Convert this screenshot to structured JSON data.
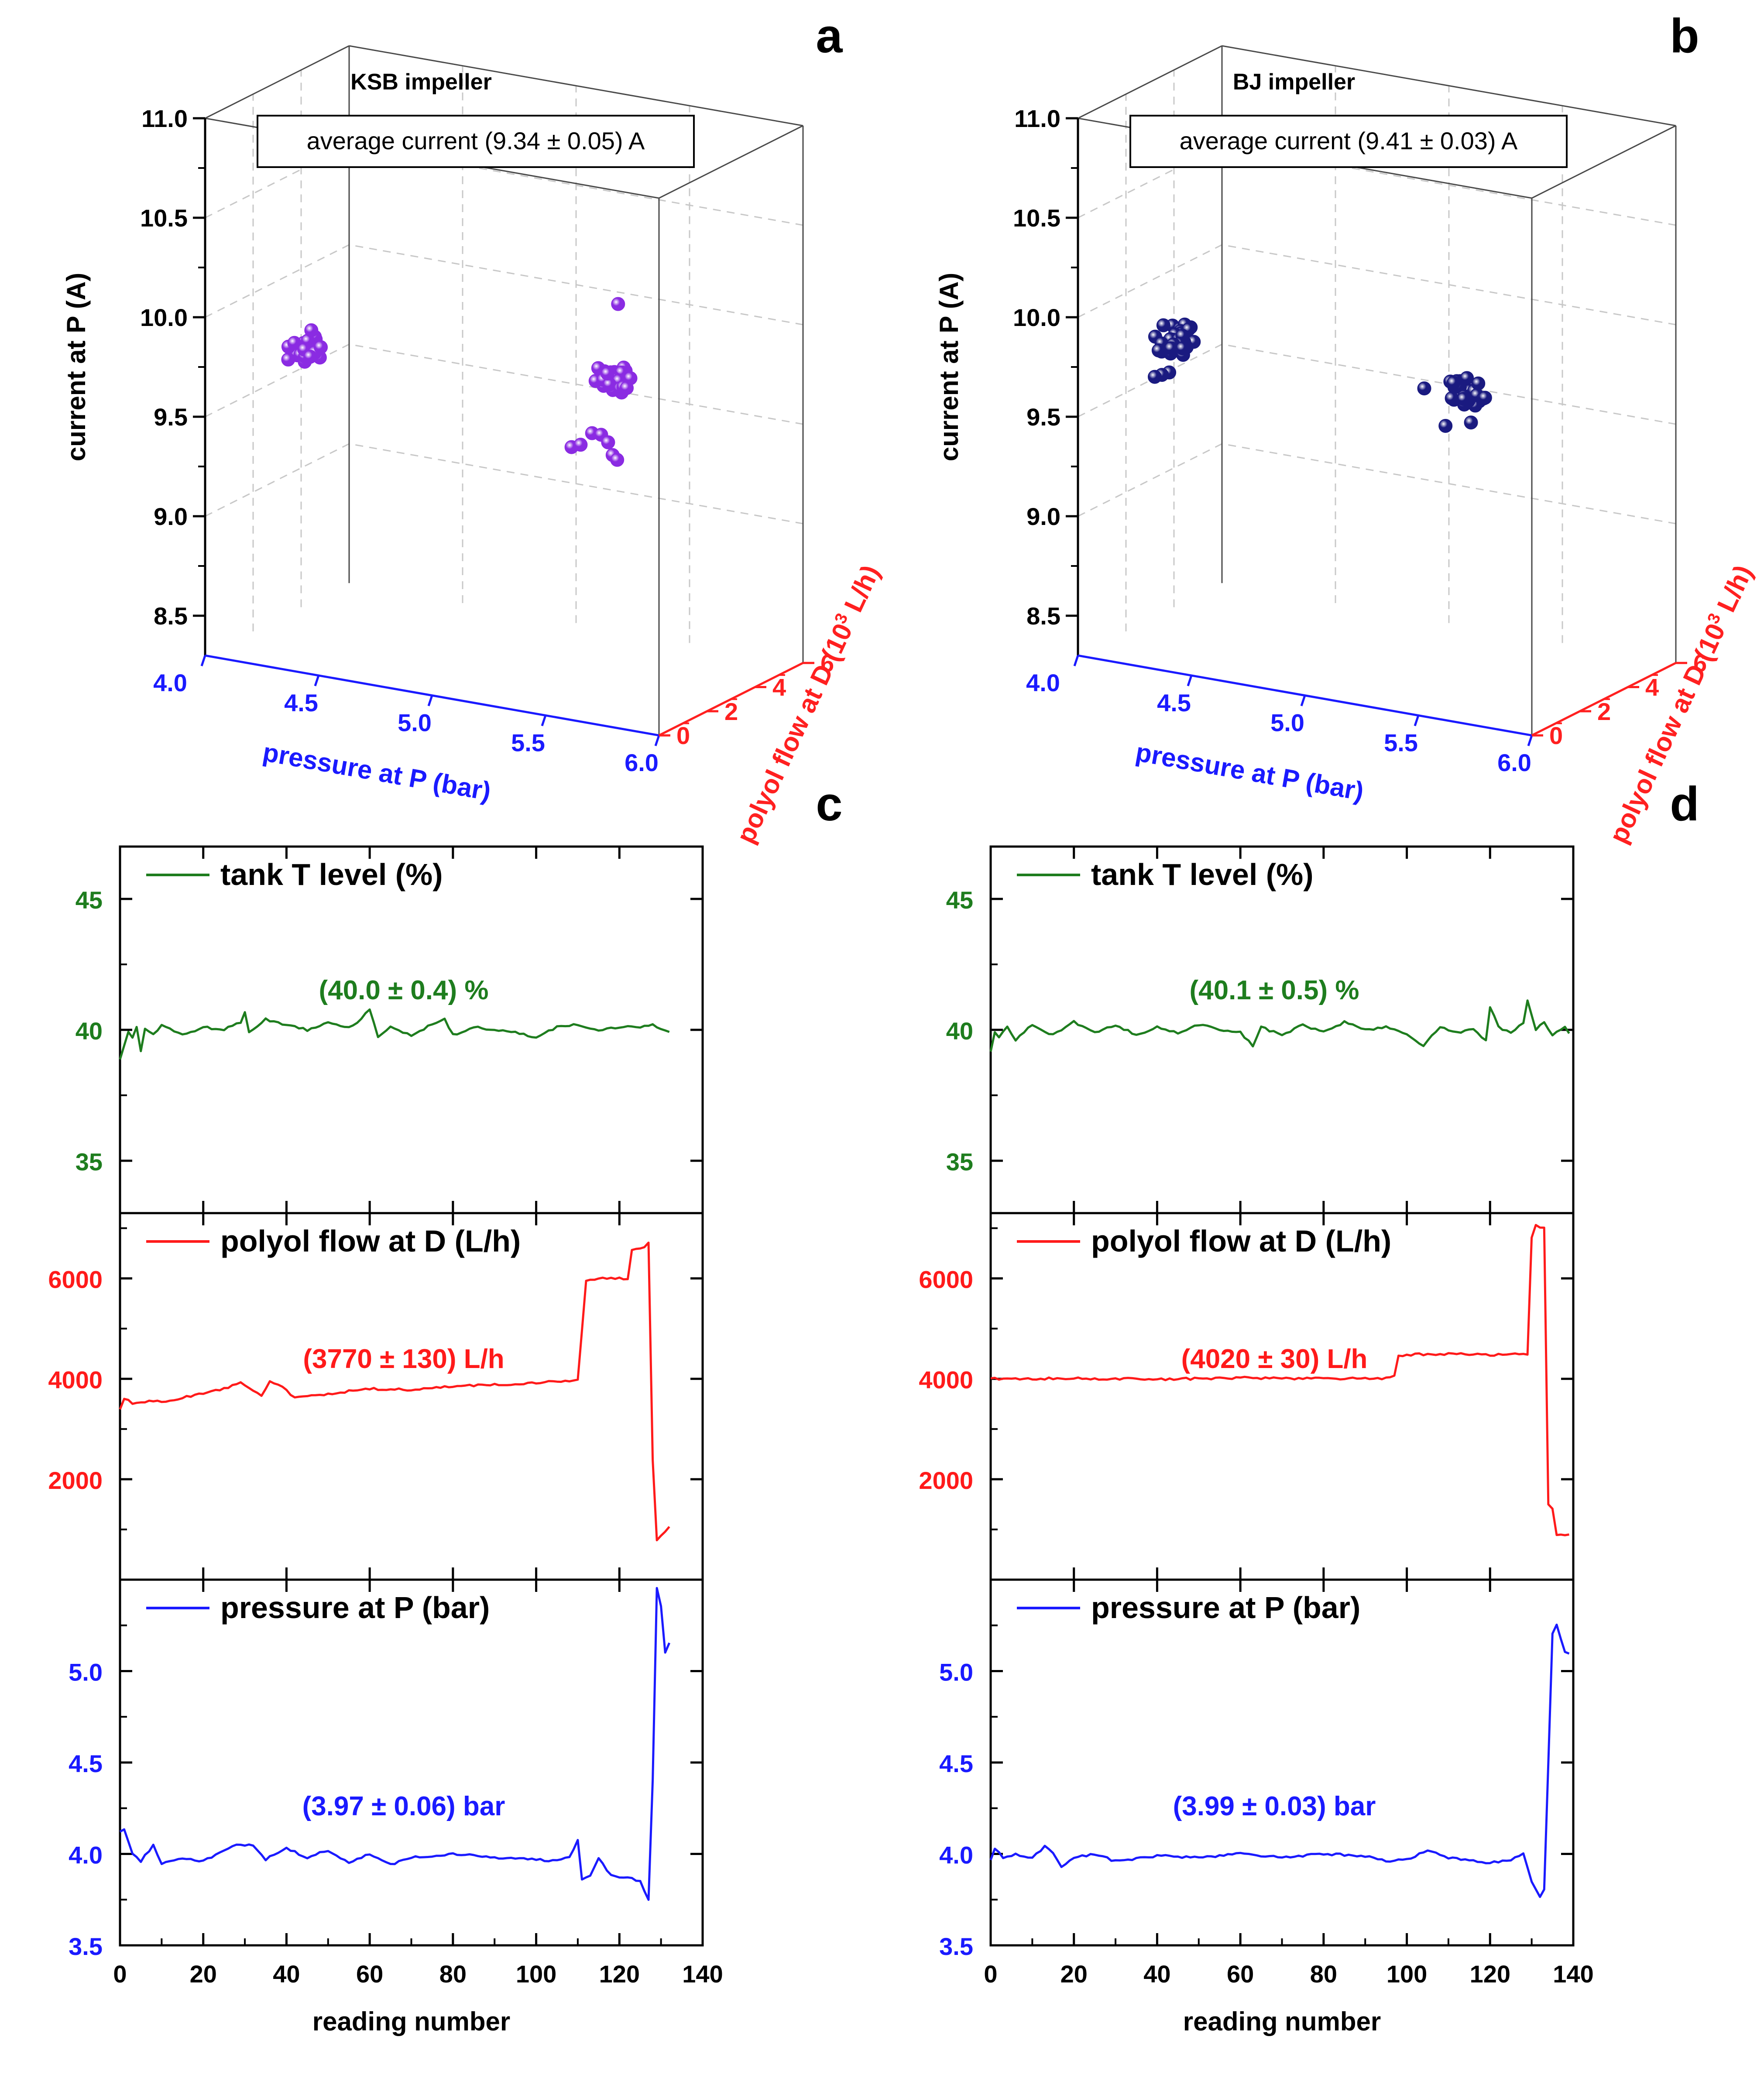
{
  "chart_data": [
    {
      "panel": "a",
      "type": "scatter3d",
      "title": "KSB impeller",
      "annotation": "average current (9.34 ± 0.05) A",
      "color": "#8a2be2",
      "x_axis": {
        "label": "pressure at P (bar)",
        "range": [
          4.0,
          6.0
        ],
        "ticks": [
          "4.0",
          "4.5",
          "5.0",
          "5.5",
          "6.0"
        ],
        "color": "#1a1aff"
      },
      "y_axis": {
        "label": "polyol flow at D (10",
        "sup": "3",
        "label_end": " L/h)",
        "range": [
          0,
          6
        ],
        "ticks": [
          "0",
          "2",
          "4",
          "6"
        ],
        "color": "#ff2020"
      },
      "z_axis": {
        "label": "current at P (A)",
        "range": [
          8.5,
          11.0
        ],
        "ticks": [
          "8.5",
          "9.0",
          "9.5",
          "10.0",
          "10.5",
          "11.0"
        ],
        "color": "#000000"
      },
      "clusters": [
        {
          "pressure": 4.05,
          "flow": 3.7,
          "current": 9.62,
          "n": 22
        },
        {
          "pressure": 4.05,
          "flow": 3.9,
          "current": 9.7,
          "n": 1
        },
        {
          "pressure": 5.12,
          "flow": 6.4,
          "current": 9.52,
          "n": 40
        },
        {
          "pressure": 5.2,
          "flow": 6.3,
          "current": 9.88,
          "n": 1
        }
      ],
      "outliers": [
        {
          "pressure": 4.98,
          "flow": 6.0,
          "current": 9.18
        },
        {
          "pressure": 5.02,
          "flow": 6.0,
          "current": 9.2
        },
        {
          "pressure": 5.06,
          "flow": 6.1,
          "current": 9.26
        },
        {
          "pressure": 5.1,
          "flow": 6.1,
          "current": 9.26
        },
        {
          "pressure": 5.12,
          "flow": 6.2,
          "current": 9.22
        },
        {
          "pressure": 5.14,
          "flow": 6.2,
          "current": 9.16
        },
        {
          "pressure": 5.16,
          "flow": 6.2,
          "current": 9.14
        }
      ]
    },
    {
      "panel": "b",
      "type": "scatter3d",
      "title": "BJ impeller",
      "annotation": "average current (9.41 ± 0.03) A",
      "color": "#1a1a80",
      "x_axis": {
        "label": "pressure at P (bar)",
        "range": [
          4.0,
          6.0
        ],
        "ticks": [
          "4.0",
          "4.5",
          "5.0",
          "5.5",
          "6.0"
        ],
        "color": "#1a1aff"
      },
      "y_axis": {
        "label": "polyol flow at D (10",
        "sup": "3",
        "label_end": " L/h)",
        "range": [
          0,
          6
        ],
        "ticks": [
          "0",
          "2",
          "4",
          "6"
        ],
        "color": "#ff2020"
      },
      "z_axis": {
        "label": "current at P (A)",
        "range": [
          8.5,
          11.0
        ],
        "ticks": [
          "8.5",
          "9.0",
          "9.5",
          "10.0",
          "10.5",
          "11.0"
        ],
        "color": "#000000"
      },
      "clusters": [
        {
          "pressure": 4.0,
          "flow": 4.0,
          "current": 9.65,
          "n": 32
        },
        {
          "pressure": 4.0,
          "flow": 4.0,
          "current": 9.48,
          "n": 3
        },
        {
          "pressure": 5.24,
          "flow": 4.5,
          "current": 9.6,
          "n": 34
        },
        {
          "pressure": 5.2,
          "flow": 4.5,
          "current": 9.4,
          "n": 2
        }
      ],
      "outliers": [
        {
          "pressure": 5.05,
          "flow": 4.5,
          "current": 9.58
        }
      ]
    },
    {
      "panel": "c",
      "type": "line",
      "xlabel": "reading number",
      "xlim": [
        0,
        140
      ],
      "xticks": [
        "0",
        "20",
        "40",
        "60",
        "80",
        "100",
        "120",
        "140"
      ],
      "series": [
        {
          "name": "tank T level (%)",
          "color": "#1e7d1e",
          "ylim": [
            33,
            47
          ],
          "yticks": [
            "35",
            "40",
            "45"
          ],
          "annotation": "(40.0 ± 0.4) %",
          "anchors": [
            [
              0,
              38.9
            ],
            [
              1,
              39.4
            ],
            [
              2,
              39.9
            ],
            [
              3,
              39.7
            ],
            [
              4,
              40.1
            ],
            [
              5,
              39.2
            ],
            [
              6,
              40.0
            ],
            [
              8,
              39.8
            ],
            [
              10,
              40.2
            ],
            [
              15,
              39.8
            ],
            [
              20,
              40.1
            ],
            [
              25,
              40.0
            ],
            [
              29,
              40.3
            ],
            [
              30,
              40.7
            ],
            [
              31,
              39.9
            ],
            [
              35,
              40.4
            ],
            [
              40,
              40.2
            ],
            [
              45,
              40.0
            ],
            [
              50,
              40.3
            ],
            [
              55,
              40.1
            ],
            [
              58,
              40.4
            ],
            [
              60,
              40.8
            ],
            [
              62,
              39.7
            ],
            [
              65,
              40.1
            ],
            [
              70,
              39.8
            ],
            [
              75,
              40.2
            ],
            [
              78,
              40.4
            ],
            [
              80,
              39.8
            ],
            [
              85,
              40.1
            ],
            [
              90,
              40.0
            ],
            [
              95,
              39.9
            ],
            [
              100,
              39.7
            ],
            [
              105,
              40.1
            ],
            [
              110,
              40.2
            ],
            [
              115,
              40.0
            ],
            [
              120,
              40.1
            ],
            [
              125,
              40.1
            ],
            [
              128,
              40.2
            ],
            [
              132,
              39.9
            ]
          ]
        },
        {
          "name": "polyol flow at D (L/h)",
          "color": "#ff1a1a",
          "ylim": [
            0,
            7300
          ],
          "yticks": [
            "2000",
            "4000",
            "6000"
          ],
          "annotation": "(3770 ± 130) L/h",
          "anchors": [
            [
              0,
              3400
            ],
            [
              1,
              3600
            ],
            [
              3,
              3520
            ],
            [
              8,
              3550
            ],
            [
              12,
              3560
            ],
            [
              15,
              3620
            ],
            [
              20,
              3720
            ],
            [
              25,
              3800
            ],
            [
              29,
              3950
            ],
            [
              30,
              3870
            ],
            [
              34,
              3680
            ],
            [
              36,
              3950
            ],
            [
              38,
              3900
            ],
            [
              42,
              3620
            ],
            [
              50,
              3700
            ],
            [
              60,
              3800
            ],
            [
              70,
              3780
            ],
            [
              80,
              3850
            ],
            [
              90,
              3880
            ],
            [
              100,
              3920
            ],
            [
              109,
              3960
            ],
            [
              110,
              4000
            ],
            [
              112,
              5950
            ],
            [
              116,
              6000
            ],
            [
              122,
              6000
            ],
            [
              123,
              6550
            ],
            [
              126,
              6600
            ],
            [
              127,
              6700
            ],
            [
              128,
              2400
            ],
            [
              129,
              800
            ],
            [
              131,
              950
            ],
            [
              132,
              1050
            ]
          ]
        },
        {
          "name": "pressure at P (bar)",
          "color": "#1a1aff",
          "ylim": [
            3.5,
            5.5
          ],
          "yticks": [
            "3.5",
            "4.0",
            "4.5",
            "5.0"
          ],
          "annotation": "(3.97 ± 0.06) bar",
          "anchors": [
            [
              0,
              4.12
            ],
            [
              1,
              4.14
            ],
            [
              3,
              4.0
            ],
            [
              5,
              3.96
            ],
            [
              8,
              4.05
            ],
            [
              10,
              3.95
            ],
            [
              15,
              3.98
            ],
            [
              20,
              3.96
            ],
            [
              28,
              4.05
            ],
            [
              32,
              4.05
            ],
            [
              35,
              3.97
            ],
            [
              40,
              4.03
            ],
            [
              45,
              3.98
            ],
            [
              50,
              4.02
            ],
            [
              55,
              3.95
            ],
            [
              60,
              4.0
            ],
            [
              65,
              3.94
            ],
            [
              70,
              3.98
            ],
            [
              80,
              4.0
            ],
            [
              90,
              3.98
            ],
            [
              100,
              3.97
            ],
            [
              105,
              3.96
            ],
            [
              108,
              3.98
            ],
            [
              110,
              4.08
            ],
            [
              111,
              3.86
            ],
            [
              113,
              3.88
            ],
            [
              115,
              3.98
            ],
            [
              118,
              3.88
            ],
            [
              122,
              3.87
            ],
            [
              125,
              3.85
            ],
            [
              127,
              3.75
            ],
            [
              128,
              4.4
            ],
            [
              129,
              5.45
            ],
            [
              130,
              5.35
            ],
            [
              131,
              5.1
            ],
            [
              132,
              5.15
            ]
          ]
        }
      ]
    },
    {
      "panel": "d",
      "type": "line",
      "xlabel": "reading number",
      "xlim": [
        0,
        140
      ],
      "xticks": [
        "0",
        "20",
        "40",
        "60",
        "80",
        "100",
        "120",
        "140"
      ],
      "series": [
        {
          "name": "tank T level (%)",
          "color": "#1e7d1e",
          "ylim": [
            33,
            47
          ],
          "yticks": [
            "35",
            "40",
            "45"
          ],
          "annotation": "(40.1 ± 0.5) %",
          "anchors": [
            [
              0,
              39.2
            ],
            [
              1,
              39.9
            ],
            [
              2,
              39.7
            ],
            [
              4,
              40.1
            ],
            [
              6,
              39.6
            ],
            [
              10,
              40.2
            ],
            [
              15,
              39.8
            ],
            [
              20,
              40.3
            ],
            [
              25,
              39.9
            ],
            [
              30,
              40.2
            ],
            [
              35,
              39.8
            ],
            [
              40,
              40.1
            ],
            [
              45,
              39.9
            ],
            [
              50,
              40.2
            ],
            [
              55,
              40.0
            ],
            [
              60,
              39.9
            ],
            [
              63,
              39.4
            ],
            [
              65,
              40.1
            ],
            [
              70,
              39.8
            ],
            [
              75,
              40.2
            ],
            [
              80,
              39.9
            ],
            [
              85,
              40.3
            ],
            [
              90,
              40.0
            ],
            [
              95,
              40.1
            ],
            [
              100,
              39.8
            ],
            [
              104,
              39.4
            ],
            [
              108,
              40.1
            ],
            [
              112,
              39.9
            ],
            [
              116,
              40.0
            ],
            [
              119,
              39.6
            ],
            [
              120,
              40.9
            ],
            [
              122,
              40.1
            ],
            [
              125,
              39.9
            ],
            [
              128,
              40.3
            ],
            [
              129,
              41.1
            ],
            [
              131,
              40.0
            ],
            [
              133,
              40.3
            ],
            [
              135,
              39.8
            ],
            [
              138,
              40.1
            ],
            [
              139,
              39.9
            ]
          ]
        },
        {
          "name": "polyol flow at D (L/h)",
          "color": "#ff1a1a",
          "ylim": [
            0,
            7300
          ],
          "yticks": [
            "2000",
            "4000",
            "6000"
          ],
          "annotation": "(4020 ± 30) L/h",
          "anchors": [
            [
              0,
              4000
            ],
            [
              20,
              4010
            ],
            [
              40,
              3990
            ],
            [
              60,
              4020
            ],
            [
              80,
              4000
            ],
            [
              96,
              4010
            ],
            [
              97,
              4050
            ],
            [
              98,
              4450
            ],
            [
              100,
              4480
            ],
            [
              110,
              4500
            ],
            [
              120,
              4480
            ],
            [
              129,
              4500
            ],
            [
              130,
              6800
            ],
            [
              131,
              7050
            ],
            [
              133,
              7000
            ],
            [
              134,
              1500
            ],
            [
              135,
              1400
            ],
            [
              136,
              900
            ],
            [
              139,
              900
            ]
          ]
        },
        {
          "name": "pressure at P (bar)",
          "color": "#1a1aff",
          "ylim": [
            3.5,
            5.5
          ],
          "yticks": [
            "3.5",
            "4.0",
            "4.5",
            "5.0"
          ],
          "annotation": "(3.99 ± 0.03) bar",
          "anchors": [
            [
              0,
              3.97
            ],
            [
              1,
              4.03
            ],
            [
              3,
              3.98
            ],
            [
              6,
              4.0
            ],
            [
              10,
              3.98
            ],
            [
              13,
              4.04
            ],
            [
              15,
              4.0
            ],
            [
              17,
              3.93
            ],
            [
              20,
              3.98
            ],
            [
              25,
              4.0
            ],
            [
              30,
              3.96
            ],
            [
              40,
              3.99
            ],
            [
              50,
              3.98
            ],
            [
              60,
              4.0
            ],
            [
              70,
              3.98
            ],
            [
              80,
              4.0
            ],
            [
              90,
              3.99
            ],
            [
              95,
              3.96
            ],
            [
              100,
              3.97
            ],
            [
              105,
              4.02
            ],
            [
              110,
              3.98
            ],
            [
              120,
              3.95
            ],
            [
              125,
              3.97
            ],
            [
              128,
              4.0
            ],
            [
              130,
              3.85
            ],
            [
              132,
              3.76
            ],
            [
              133,
              3.8
            ],
            [
              135,
              5.2
            ],
            [
              136,
              5.25
            ],
            [
              138,
              5.1
            ],
            [
              139,
              5.1
            ]
          ]
        }
      ]
    }
  ]
}
